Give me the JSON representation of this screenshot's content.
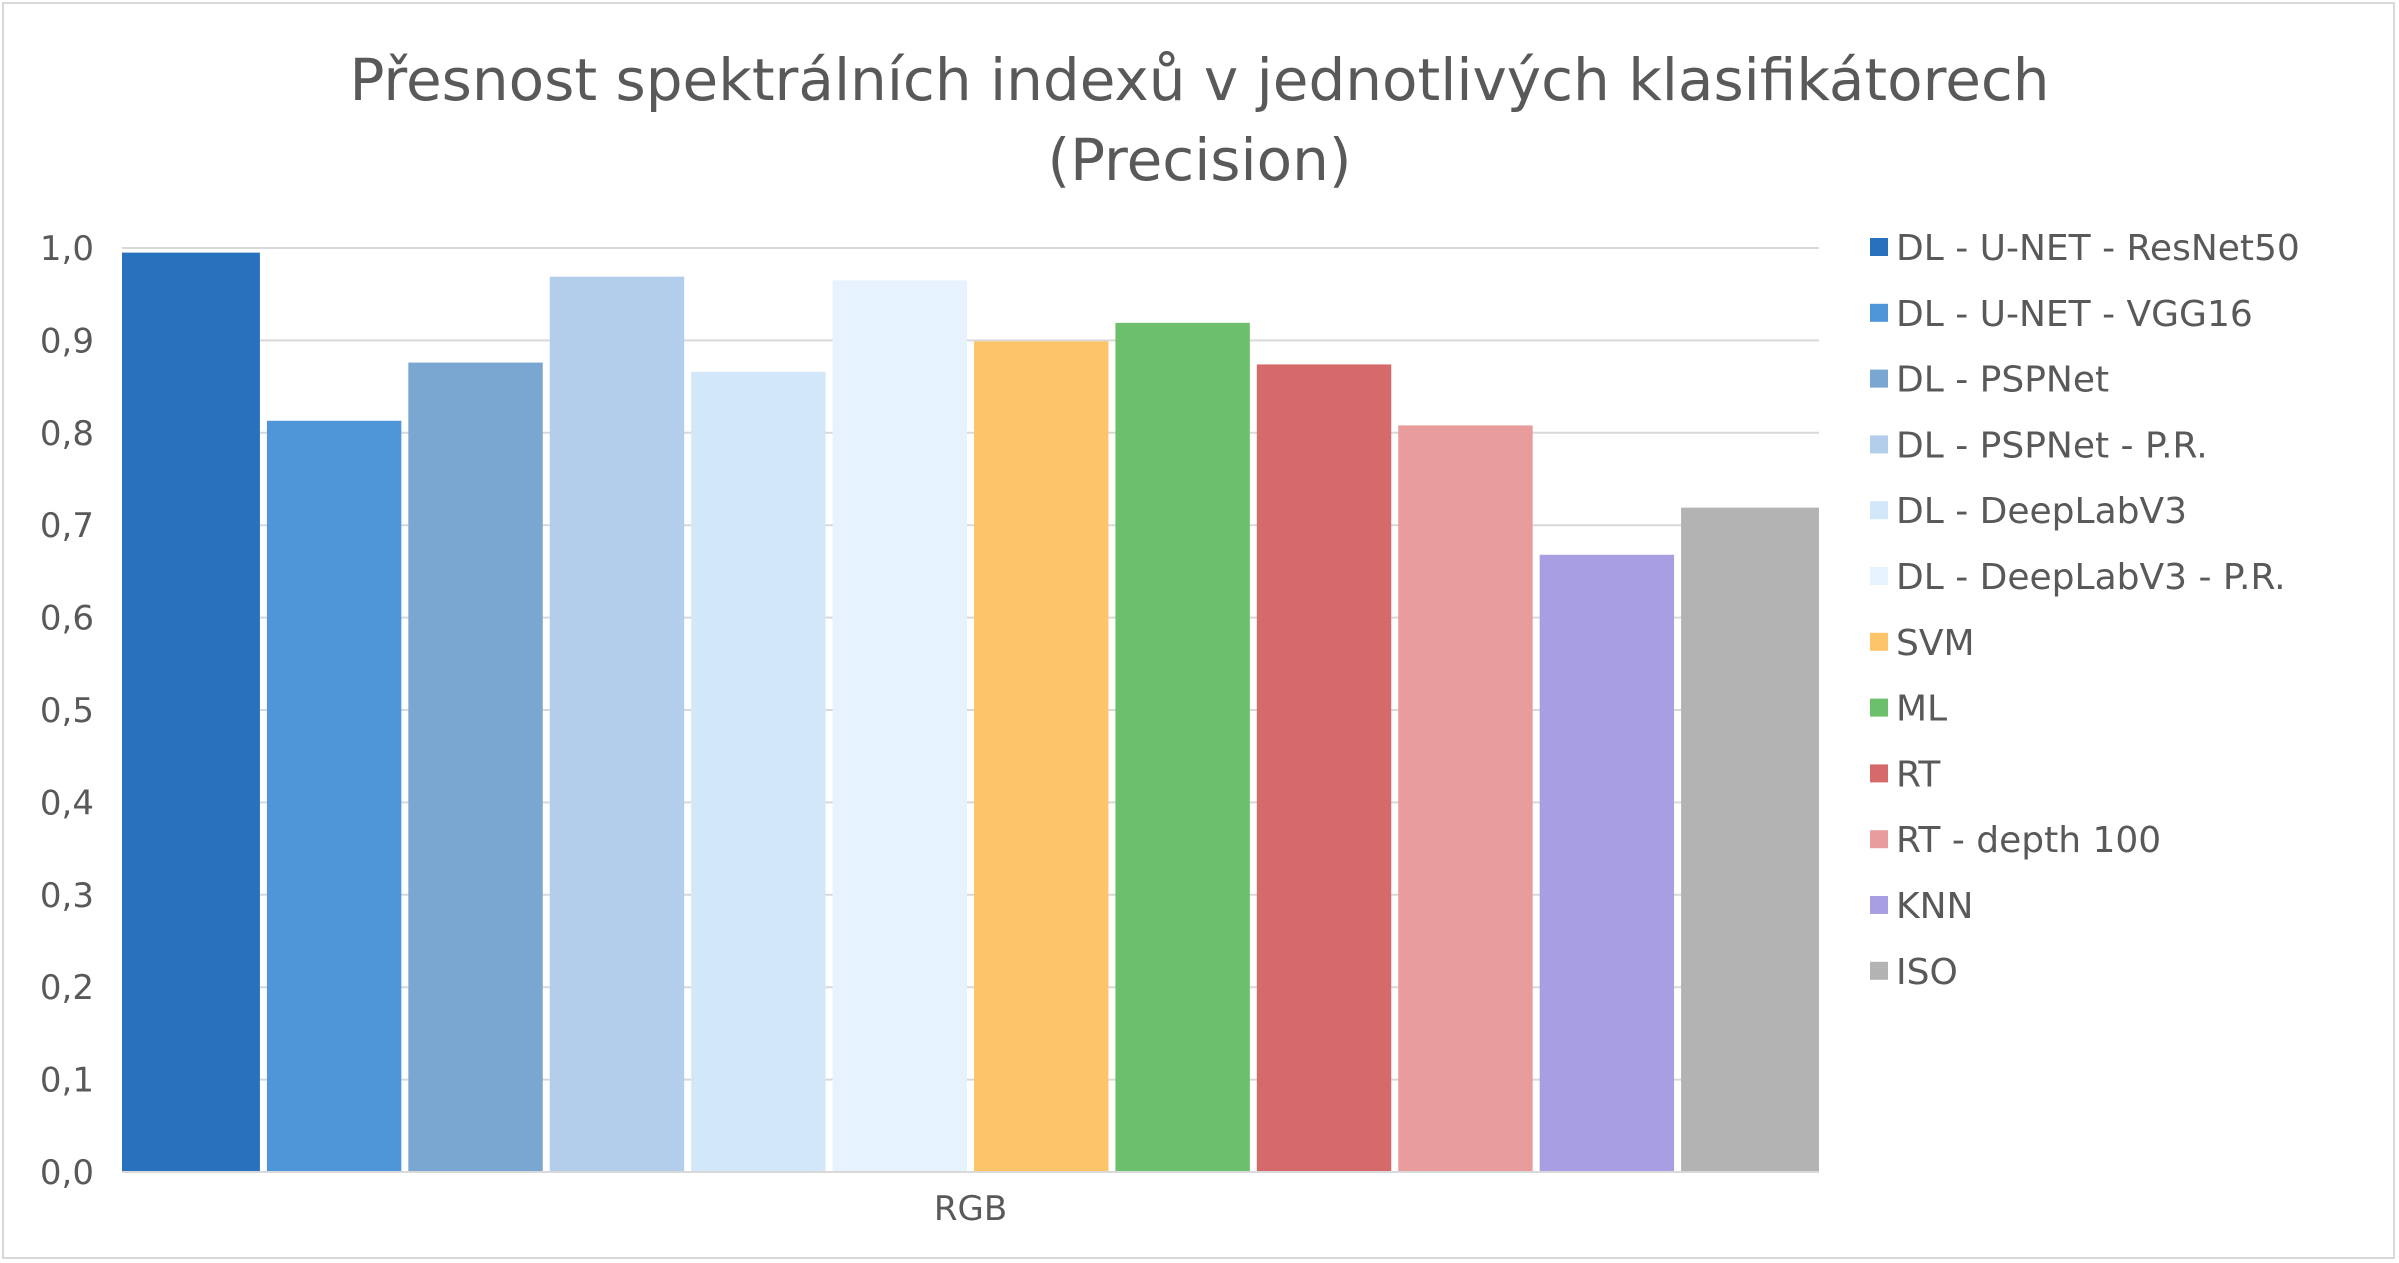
{
  "chart_data": {
    "type": "bar",
    "title_line1": "Přesnost spektrálních indexů v jednotlivých klasifikátorech",
    "title_line2": "(Precision)",
    "categories": [
      "RGB"
    ],
    "ylim": [
      0,
      1.0
    ],
    "yticks": [
      "0,0",
      "0,1",
      "0,2",
      "0,3",
      "0,4",
      "0,5",
      "0,6",
      "0,7",
      "0,8",
      "0,9",
      "1,0"
    ],
    "grid": true,
    "legend_position": "right",
    "series": [
      {
        "name": "DL - U-NET - ResNet50",
        "values": [
          0.995
        ],
        "color": "#2871bd"
      },
      {
        "name": "DL - U-NET - VGG16",
        "values": [
          0.813
        ],
        "color": "#4e96d8"
      },
      {
        "name": "DL - PSPNet",
        "values": [
          0.876
        ],
        "color": "#7aa7d2"
      },
      {
        "name": "DL - PSPNet - P.R.",
        "values": [
          0.969
        ],
        "color": "#b3ceeb"
      },
      {
        "name": "DL - DeepLabV3",
        "values": [
          0.866
        ],
        "color": "#d3e7fb"
      },
      {
        "name": "DL - DeepLabV3 - P.R.",
        "values": [
          0.965
        ],
        "color": "#e6f2fd"
      },
      {
        "name": "SVM",
        "values": [
          0.899
        ],
        "color": "#fdc46a"
      },
      {
        "name": "ML",
        "values": [
          0.919
        ],
        "color": "#6cc06c"
      },
      {
        "name": "RT",
        "values": [
          0.874
        ],
        "color": "#d66a6a"
      },
      {
        "name": "RT - depth 100",
        "values": [
          0.808
        ],
        "color": "#e89c9c"
      },
      {
        "name": "KNN",
        "values": [
          0.668
        ],
        "color": "#a89ee2"
      },
      {
        "name": "ISO",
        "values": [
          0.719
        ],
        "color": "#b3b3b3"
      }
    ]
  }
}
